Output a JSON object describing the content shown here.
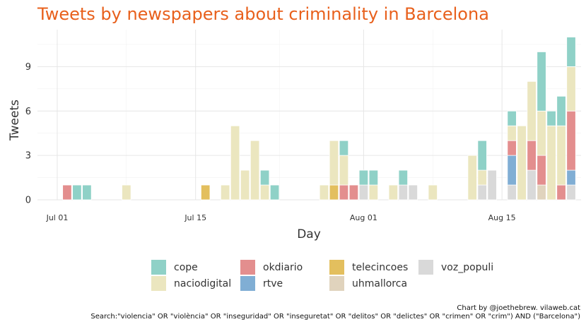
{
  "chart_data": {
    "type": "bar",
    "stacked": true,
    "title": "Tweets by newspapers about criminality in Barcelona",
    "xlabel": "Day",
    "ylabel": "Tweets",
    "ylim": [
      0,
      11.5
    ],
    "y_ticks": [
      0,
      3,
      6,
      9
    ],
    "x_ticks": [
      {
        "day": 0,
        "label": "Jul 01"
      },
      {
        "day": 14,
        "label": "Jul 15"
      },
      {
        "day": 31,
        "label": "Aug 01"
      },
      {
        "day": 45,
        "label": "Aug 15"
      }
    ],
    "x_range": [
      -2,
      53
    ],
    "grid": true,
    "legend_position": "bottom",
    "series_order": [
      "cope",
      "naciodigital",
      "okdiario",
      "rtve",
      "telecincoes",
      "uhmallorca",
      "voz_populi"
    ],
    "legend_layout": [
      [
        "cope",
        "okdiario",
        "telecincoes",
        "voz_populi"
      ],
      [
        "naciodigital",
        "rtve",
        "uhmallorca"
      ]
    ],
    "colors": {
      "cope": "#8fd1c7",
      "naciodigital": "#ebe6bf",
      "okdiario": "#e38e8e",
      "rtve": "#80aed4",
      "telecincoes": "#e3bf5e",
      "uhmallorca": "#e0d3bd",
      "voz_populi": "#d9d9d9"
    },
    "days": [
      {
        "day": 1,
        "okdiario": 1
      },
      {
        "day": 2,
        "cope": 1
      },
      {
        "day": 3,
        "cope": 1
      },
      {
        "day": 7,
        "naciodigital": 1
      },
      {
        "day": 15,
        "telecincoes": 1
      },
      {
        "day": 17,
        "naciodigital": 1
      },
      {
        "day": 18,
        "naciodigital": 5
      },
      {
        "day": 19,
        "naciodigital": 2
      },
      {
        "day": 20,
        "naciodigital": 4
      },
      {
        "day": 21,
        "cope": 1,
        "naciodigital": 1
      },
      {
        "day": 22,
        "cope": 1
      },
      {
        "day": 27,
        "naciodigital": 1
      },
      {
        "day": 28,
        "naciodigital": 3,
        "telecincoes": 1
      },
      {
        "day": 29,
        "cope": 1,
        "naciodigital": 2,
        "okdiario": 1
      },
      {
        "day": 30,
        "okdiario": 1
      },
      {
        "day": 31,
        "cope": 1,
        "voz_populi": 1
      },
      {
        "day": 32,
        "cope": 1,
        "naciodigital": 1
      },
      {
        "day": 34,
        "naciodigital": 1
      },
      {
        "day": 35,
        "cope": 1,
        "voz_populi": 1
      },
      {
        "day": 36,
        "voz_populi": 1
      },
      {
        "day": 38,
        "naciodigital": 1
      },
      {
        "day": 42,
        "naciodigital": 3
      },
      {
        "day": 43,
        "cope": 2,
        "naciodigital": 1,
        "voz_populi": 1
      },
      {
        "day": 44,
        "voz_populi": 2
      },
      {
        "day": 46,
        "cope": 1,
        "naciodigital": 1,
        "okdiario": 1,
        "rtve": 2,
        "voz_populi": 1
      },
      {
        "day": 47,
        "naciodigital": 5
      },
      {
        "day": 48,
        "naciodigital": 4,
        "okdiario": 2,
        "voz_populi": 2
      },
      {
        "day": 49,
        "cope": 4,
        "naciodigital": 3,
        "okdiario": 2,
        "uhmallorca": 1
      },
      {
        "day": 50,
        "cope": 1,
        "naciodigital": 5
      },
      {
        "day": 51,
        "cope": 2,
        "naciodigital": 4,
        "okdiario": 1
      },
      {
        "day": 52,
        "cope": 2,
        "naciodigital": 3,
        "okdiario": 4,
        "rtve": 1,
        "voz_populi": 1
      }
    ]
  },
  "caption": {
    "line1": "Chart by @joethebrew. vilaweb.cat",
    "line2": "Search:\"violencia\" OR \"violència\" OR \"inseguridad\" OR \"inseguretat\" OR \"delitos\" OR \"delictes\" OR \"crimen\" OR \"crim\") AND (\"Barcelona\")"
  }
}
